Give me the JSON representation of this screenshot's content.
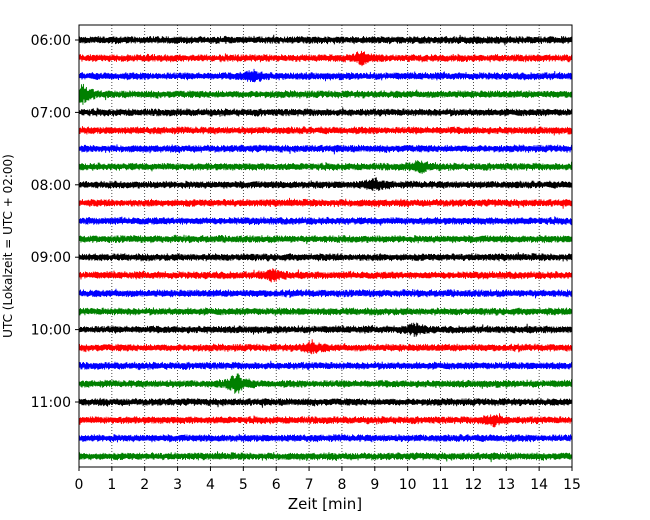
{
  "chart_data": {
    "type": "line",
    "subtype": "helicorder",
    "title": "",
    "xlabel": "Zeit  [min]",
    "ylabel": "UTC (Lokalzeit = UTC + 02:00)",
    "xlim": [
      0,
      15
    ],
    "xticks": [
      0,
      1,
      2,
      3,
      4,
      5,
      6,
      7,
      8,
      9,
      10,
      11,
      12,
      13,
      14,
      15
    ],
    "yticks": [
      "06:00",
      "07:00",
      "08:00",
      "09:00",
      "10:00",
      "11:00"
    ],
    "trace_start": "06:00",
    "trace_interval_min": 15,
    "trace_count": 24,
    "grid": "vertical dotted lines at each minute",
    "colors": [
      "#000000",
      "#ff0000",
      "#0000ff",
      "#008000"
    ],
    "events": [
      {
        "trace": 1,
        "minute": 8.6,
        "amplitude": "medium"
      },
      {
        "trace": 2,
        "minute": 5.3,
        "amplitude": "medium"
      },
      {
        "trace": 3,
        "minute": 0.1,
        "amplitude": "high"
      },
      {
        "trace": 7,
        "minute": 10.4,
        "amplitude": "medium"
      },
      {
        "trace": 8,
        "minute": 9.0,
        "amplitude": "medium"
      },
      {
        "trace": 13,
        "minute": 5.9,
        "amplitude": "medium"
      },
      {
        "trace": 16,
        "minute": 10.2,
        "amplitude": "medium"
      },
      {
        "trace": 17,
        "minute": 7.1,
        "amplitude": "medium"
      },
      {
        "trace": 19,
        "minute": 4.8,
        "amplitude": "high"
      },
      {
        "trace": 21,
        "minute": 12.6,
        "amplitude": "medium"
      }
    ]
  }
}
